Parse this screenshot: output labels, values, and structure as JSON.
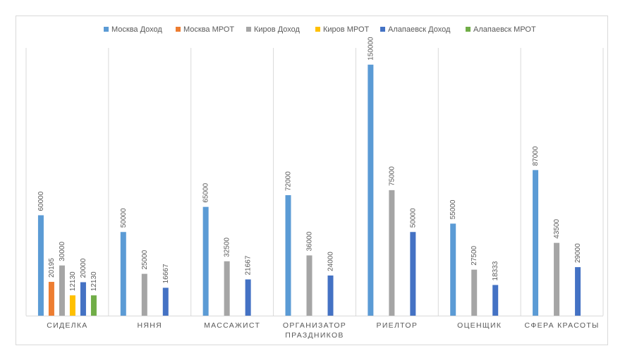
{
  "chart_data": {
    "type": "bar",
    "title": "",
    "xlabel": "",
    "ylabel": "",
    "ylim": [
      0,
      160000
    ],
    "grid": "vertical category separators",
    "legend_position": "top",
    "categories": [
      "СИДЕЛКА",
      "НЯНЯ",
      "МАССАЖИСТ",
      "ОРГАНИЗАТОР ПРАЗДНИКОВ",
      "РИЕЛТОР",
      "ОЦЕНЩИК",
      "СФЕРА КРАСОТЫ"
    ],
    "series": [
      {
        "name": "Москва Доход",
        "color": "#5B9BD5",
        "values": [
          60000,
          50000,
          65000,
          72000,
          150000,
          55000,
          87000
        ]
      },
      {
        "name": "Москва МРОТ",
        "color": "#ED7D31",
        "values": [
          20195,
          null,
          null,
          null,
          null,
          null,
          null
        ]
      },
      {
        "name": "Киров Доход",
        "color": "#A5A5A5",
        "values": [
          30000,
          25000,
          32500,
          36000,
          75000,
          27500,
          43500
        ]
      },
      {
        "name": "Киров МРОТ",
        "color": "#FFC000",
        "values": [
          12130,
          null,
          null,
          null,
          null,
          null,
          null
        ]
      },
      {
        "name": "Алапаевск Доход",
        "color": "#4472C4",
        "values": [
          20000,
          16667,
          21667,
          24000,
          50000,
          18333,
          29000
        ]
      },
      {
        "name": "Алапаевск МРОТ",
        "color": "#70AD47",
        "values": [
          12130,
          null,
          null,
          null,
          null,
          null,
          null
        ]
      }
    ]
  }
}
